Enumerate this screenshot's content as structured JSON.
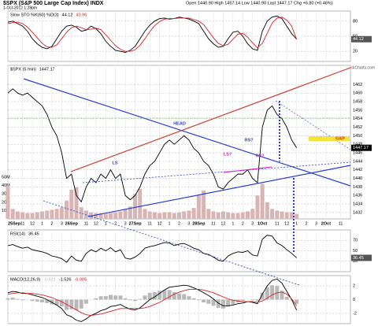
{
  "chart_data": {
    "type": "line",
    "title": "$SPX (S&P 500 Large Cap Index) INDX",
    "subtitle": "1-Oct-2012 1:28pm",
    "quote": "Open 1440.90 High 1457.14 Low 1440.90 Last 1447.17 Chg +6.80 (+0.46%)",
    "credit": "© StockCharts.com",
    "x": [
      0,
      0.5,
      1,
      1.5,
      2,
      2.5,
      3,
      3.5,
      4,
      4.5,
      5,
      5.5,
      6,
      6.5,
      7,
      7.5,
      8,
      8.5,
      9,
      9.5,
      10,
      10.5,
      11,
      11.5,
      12,
      12.5,
      13,
      13.5,
      14,
      14.5,
      15,
      15.5,
      16,
      16.5,
      17,
      17.5,
      18,
      18.5,
      19,
      19.5,
      20,
      20.5,
      21,
      21.5,
      22,
      22.5,
      23,
      23.5,
      24,
      24.5,
      25,
      25.5,
      26,
      26.5,
      27,
      27.5,
      28,
      28.5,
      29,
      29.5
    ],
    "xlim": [
      0,
      35
    ],
    "xticks": [
      {
        "value": 0,
        "label": "25Sep"
      },
      {
        "value": 1.5,
        "label": "11"
      },
      {
        "value": 2.5,
        "label": "12"
      },
      {
        "value": 3.5,
        "label": "1"
      },
      {
        "value": 4.5,
        "label": "2"
      },
      {
        "value": 5.5,
        "label": "3"
      },
      {
        "value": 6.5,
        "label": "26Sep"
      },
      {
        "value": 8,
        "label": "11"
      },
      {
        "value": 9,
        "label": "12"
      },
      {
        "value": 10,
        "label": "1"
      },
      {
        "value": 11,
        "label": "2"
      },
      {
        "value": 12,
        "label": "3"
      },
      {
        "value": 13,
        "label": "27Sep"
      },
      {
        "value": 14.5,
        "label": "11"
      },
      {
        "value": 15.5,
        "label": "12"
      },
      {
        "value": 16.5,
        "label": "1"
      },
      {
        "value": 17.5,
        "label": "2"
      },
      {
        "value": 18.5,
        "label": "3"
      },
      {
        "value": 19.5,
        "label": "28Sep"
      },
      {
        "value": 21,
        "label": "11"
      },
      {
        "value": 22,
        "label": "12"
      },
      {
        "value": 23,
        "label": "1"
      },
      {
        "value": 24,
        "label": "2"
      },
      {
        "value": 25,
        "label": "3"
      },
      {
        "value": 26,
        "label": "1Oct"
      },
      {
        "value": 27.5,
        "label": "11"
      },
      {
        "value": 28.5,
        "label": "12"
      },
      {
        "value": 29.5,
        "label": "1"
      },
      {
        "value": 30.5,
        "label": "2"
      },
      {
        "value": 31.5,
        "label": "3"
      },
      {
        "value": 32.5,
        "label": "2Oct"
      },
      {
        "value": 34,
        "label": "11"
      }
    ],
    "grid": true,
    "panels": [
      {
        "title": "Slow STO %K(60) %D(3)",
        "ylim": [
          0,
          100
        ],
        "yticks": [
          20,
          50,
          80
        ],
        "series": [
          {
            "color": "#000000",
            "values": [
              78,
              80,
              75,
              70,
              60,
              45,
              35,
              28,
              25,
              30,
              45,
              60,
              70,
              72,
              68,
              60,
              62,
              70,
              65,
              55,
              40,
              30,
              22,
              20,
              18,
              22,
              30,
              45,
              60,
              72,
              80,
              85,
              86,
              84,
              85,
              88,
              86,
              84,
              80,
              75,
              60,
              45,
              35,
              28,
              30,
              45,
              58,
              60,
              50,
              35,
              25,
              22,
              60,
              80,
              88,
              90,
              85,
              70,
              55,
              44.12
            ]
          },
          {
            "color": "#e02020",
            "values": [
              75,
              77,
              78,
              75,
              68,
              58,
              47,
              36,
              29,
              28,
              33,
              45,
              58,
              67,
              70,
              67,
              63,
              64,
              66,
              63,
              53,
              42,
              31,
              24,
              20,
              20,
              23,
              32,
              45,
              59,
              71,
              79,
              84,
              85,
              85,
              86,
              86,
              86,
              83,
              80,
              73,
              60,
              47,
              36,
              31,
              34,
              44,
              54,
              56,
              48,
              37,
              27,
              36,
              56,
              76,
              86,
              88,
              82,
              70,
              43.96
            ]
          }
        ]
      },
      {
        "title": "$SPX (5 min)",
        "ylim": [
          1430.5,
          1466.5
        ],
        "yticks": [
          1432,
          1434,
          1436,
          1438,
          1440,
          1442,
          1444,
          1446,
          1448,
          1450,
          1452,
          1454,
          1456,
          1458,
          1460,
          1462
        ],
        "y2lim": [
          0,
          184
        ],
        "y2ticks": [
          {
            "value": 10,
            "label": "10M"
          },
          {
            "value": 20,
            "label": "20M"
          },
          {
            "value": 30,
            "label": "30M"
          },
          {
            "value": 40,
            "label": "40M"
          },
          {
            "value": 50,
            "label": "50M"
          }
        ],
        "series": [
          {
            "color": "#000000",
            "values": [
              1460,
              1461,
              1460,
              1459.5,
              1460,
              1459,
              1458,
              1457,
              1455,
              1452,
              1450,
              1446,
              1440,
              1441,
              1436,
              1434.5,
              1438,
              1440,
              1439,
              1441,
              1440,
              1442,
              1440,
              1441,
              1436,
              1435,
              1436,
              1438,
              1441,
              1443,
              1444,
              1446,
              1448,
              1449,
              1448,
              1449,
              1450,
              1449,
              1447,
              1446,
              1444,
              1443,
              1441,
              1438,
              1437.5,
              1439,
              1440,
              1441,
              1441,
              1442,
              1440,
              1439,
              1452,
              1456,
              1457,
              1455,
              1454,
              1452,
              1449,
              1447.17
            ]
          },
          {
            "type": "bar",
            "axis": "y2",
            "color": "#d8b4b4",
            "values": [
              40,
              12,
              9,
              8,
              7,
              7,
              8,
              9,
              10,
              11,
              12,
              14,
              22,
              35,
              38,
              14,
              10,
              8,
              7,
              7,
              6,
              7,
              8,
              9,
              12,
              15,
              30,
              36,
              12,
              9,
              8,
              7,
              8,
              8,
              7,
              8,
              9,
              10,
              13,
              28,
              34,
              12,
              9,
              8,
              9,
              8,
              7,
              7,
              8,
              9,
              12,
              28,
              42,
              20,
              12,
              10,
              9,
              8,
              8,
              6
            ]
          }
        ]
      },
      {
        "title": "RSI(14)",
        "ylim": [
          10,
          90
        ],
        "yticks": [
          30,
          50,
          70
        ],
        "series": [
          {
            "color": "#000000",
            "values": [
              60,
              62,
              58,
              55,
              57,
              52,
              50,
              48,
              45,
              40,
              38,
              35,
              28,
              40,
              32,
              30,
              45,
              52,
              48,
              55,
              50,
              56,
              48,
              52,
              36,
              34,
              38,
              45,
              55,
              58,
              60,
              63,
              66,
              65,
              60,
              63,
              64,
              60,
              55,
              52,
              45,
              43,
              38,
              32,
              30,
              40,
              45,
              48,
              47,
              50,
              42,
              40,
              72,
              80,
              78,
              65,
              60,
              52,
              45,
              36.45
            ]
          }
        ]
      },
      {
        "title": "MACD(12,26,9)",
        "ylim": [
          -3.5,
          3.5
        ],
        "yticks": [
          -2,
          0,
          2
        ],
        "series": [
          {
            "type": "bar",
            "color": "#b8b8b8",
            "values": [
              0.2,
              0.3,
              0.1,
              -0.1,
              0,
              -0.2,
              -0.3,
              -0.4,
              -0.5,
              -0.7,
              -0.8,
              -1.0,
              -1.5,
              -1.4,
              -1.5,
              -1.3,
              -0.6,
              0,
              0.2,
              0.5,
              0.5,
              0.7,
              0.6,
              0.6,
              0.2,
              -0.1,
              -0.2,
              0.1,
              0.6,
              1.0,
              1.1,
              1.3,
              1.4,
              1.4,
              1.1,
              0.9,
              0.8,
              0.5,
              0.2,
              -0.1,
              -0.4,
              -0.6,
              -0.9,
              -1.2,
              -1.3,
              -1.0,
              -0.7,
              -0.4,
              -0.2,
              0,
              -0.1,
              -0.2,
              1.0,
              1.8,
              2.1,
              2.0,
              1.3,
              0.4,
              -0.1,
              -0.621
            ]
          },
          {
            "color": "#000000",
            "values": [
              1.0,
              1.2,
              1.1,
              0.9,
              0.9,
              0.7,
              0.5,
              0.3,
              0.0,
              -0.4,
              -0.8,
              -1.3,
              -2.2,
              -2.5,
              -3.0,
              -3.2,
              -2.8,
              -2.3,
              -2.0,
              -1.6,
              -1.4,
              -1.0,
              -0.9,
              -0.7,
              -1.1,
              -1.4,
              -1.5,
              -1.2,
              -0.6,
              0.0,
              0.4,
              0.9,
              1.4,
              1.8,
              1.9,
              2.0,
              2.1,
              2.0,
              1.7,
              1.4,
              1.0,
              0.6,
              0.1,
              -0.5,
              -0.9,
              -0.9,
              -0.8,
              -0.6,
              -0.5,
              -0.3,
              -0.4,
              -0.6,
              0.8,
              2.0,
              2.8,
              3.0,
              2.4,
              1.2,
              0.0,
              -1.526
            ]
          },
          {
            "color": "#e02020",
            "values": [
              0.8,
              0.9,
              1.0,
              1.0,
              0.9,
              0.9,
              0.8,
              0.7,
              0.5,
              0.3,
              0.0,
              -0.3,
              -0.7,
              -1.1,
              -1.5,
              -1.9,
              -2.2,
              -2.3,
              -2.2,
              -2.1,
              -1.9,
              -1.7,
              -1.5,
              -1.3,
              -1.3,
              -1.3,
              -1.3,
              -1.3,
              -1.2,
              -1.0,
              -0.7,
              -0.4,
              0.0,
              0.4,
              0.8,
              1.1,
              1.3,
              1.5,
              1.5,
              1.5,
              1.4,
              1.2,
              1.0,
              0.7,
              0.4,
              0.1,
              -0.1,
              -0.2,
              -0.3,
              -0.3,
              -0.3,
              -0.4,
              -0.2,
              0.2,
              0.7,
              1.0,
              1.1,
              0.8,
              0.1,
              -0.905
            ]
          }
        ]
      }
    ],
    "annotations": [
      {
        "text": "LS",
        "color": "#2a3fcf"
      },
      {
        "text": "HEAD",
        "color": "#2a3fcf"
      },
      {
        "text": "RS?",
        "color": "#2a3fcf"
      },
      {
        "text": "LS?",
        "color": "#d020c0"
      },
      {
        "text": "RS?",
        "color": "#d020c0"
      },
      {
        "text": "GAP",
        "color": "#e03010"
      }
    ]
  }
}
